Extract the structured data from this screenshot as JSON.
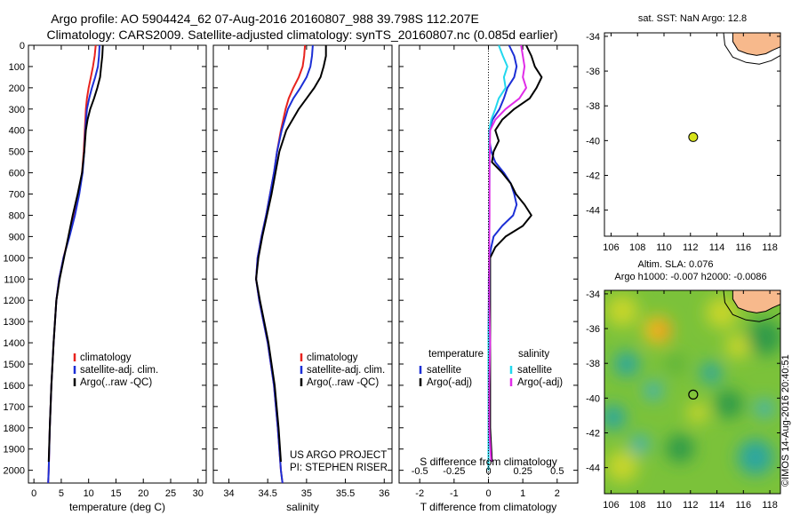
{
  "title": {
    "line1": "Argo profile: AO 5904424_62 07-Aug-2016 20160807_988 39.798S 112.207E",
    "line2": "Climatology: CARS2009. Satellite-adjusted climatology: synTS_20160807.nc (0.085d earlier)"
  },
  "copyright": "©IMOS 14-Aug-2016 20:40:51",
  "colors": {
    "climatology": "#e8231e",
    "satellite": "#1c2fd6",
    "argo": "#000000",
    "sat_s": "#22d8ee",
    "argo_s": "#e02ce8",
    "land": "#f7b98c"
  },
  "chart_data": [
    {
      "type": "line",
      "name": "temperature",
      "xlabel": "temperature (deg C)",
      "xlim": [
        -1,
        31.5
      ],
      "xticks": [
        0,
        5,
        10,
        15,
        20,
        25,
        30
      ],
      "ylim": [
        2060,
        0
      ],
      "yticks": [
        0,
        100,
        200,
        300,
        400,
        500,
        600,
        700,
        800,
        900,
        1000,
        1100,
        1200,
        1300,
        1400,
        1500,
        1600,
        1700,
        1800,
        1900,
        2000
      ],
      "legend": [
        "climatology",
        "satellite-adj. clim.",
        "Argo(..raw -QC)"
      ],
      "series": [
        {
          "key": "climatology",
          "depth": [
            0,
            50,
            100,
            150,
            200,
            250,
            300,
            400,
            500,
            600,
            700,
            800,
            900,
            1000,
            1100,
            1200,
            1400,
            1600,
            1800,
            2000,
            2060
          ],
          "values": [
            11.3,
            11.1,
            10.8,
            10.4,
            10.0,
            9.7,
            9.5,
            9.3,
            9.1,
            8.8,
            8.2,
            7.4,
            6.4,
            5.4,
            4.6,
            4.1,
            3.6,
            3.2,
            2.9,
            2.7,
            2.6
          ]
        },
        {
          "key": "satellite",
          "depth": [
            0,
            50,
            100,
            150,
            200,
            250,
            300,
            400,
            500,
            600,
            700,
            800,
            900,
            1000,
            1100,
            1200,
            1400,
            1600,
            1800,
            2000,
            2060
          ],
          "values": [
            12.0,
            11.9,
            11.7,
            11.2,
            10.6,
            10.1,
            9.7,
            9.4,
            9.2,
            8.9,
            8.3,
            7.5,
            6.5,
            5.4,
            4.6,
            4.1,
            3.6,
            3.2,
            2.9,
            2.7,
            2.6
          ]
        },
        {
          "key": "argo",
          "depth": [
            0,
            50,
            100,
            150,
            200,
            250,
            300,
            350,
            400,
            500,
            600,
            700,
            800,
            900,
            1000,
            1100,
            1200,
            1400,
            1600,
            1800,
            1960
          ],
          "values": [
            12.6,
            12.5,
            12.3,
            12.1,
            11.6,
            11.0,
            10.3,
            9.8,
            9.5,
            9.2,
            8.8,
            8.0,
            7.1,
            6.3,
            5.5,
            4.7,
            4.1,
            3.6,
            3.2,
            2.9,
            2.7
          ]
        }
      ]
    },
    {
      "type": "line",
      "name": "salinity",
      "xlabel": "salinity",
      "xlim": [
        33.8,
        36.1
      ],
      "xticks": [
        34,
        34.5,
        35,
        35.5,
        36
      ],
      "ylim": [
        2060,
        0
      ],
      "legend": [
        "climatology",
        "satellite-adj. clim.",
        "Argo(..raw -QC)"
      ],
      "annotation": [
        "US ARGO PROJECT",
        "PI: STEPHEN RISER"
      ],
      "series": [
        {
          "key": "climatology",
          "depth": [
            0,
            50,
            100,
            150,
            200,
            250,
            300,
            400,
            500,
            600,
            700,
            800,
            900,
            1000,
            1100,
            1200,
            1400,
            1600,
            1800,
            2000,
            2060
          ],
          "values": [
            34.98,
            34.97,
            34.95,
            34.9,
            34.83,
            34.77,
            34.73,
            34.67,
            34.62,
            34.58,
            34.53,
            34.48,
            34.42,
            34.37,
            34.35,
            34.39,
            34.5,
            34.58,
            34.63,
            34.67,
            34.69
          ]
        },
        {
          "key": "satellite",
          "depth": [
            0,
            50,
            100,
            150,
            200,
            250,
            300,
            400,
            500,
            600,
            700,
            800,
            900,
            1000,
            1100,
            1200,
            1400,
            1600,
            1800,
            2000,
            2060
          ],
          "values": [
            35.08,
            35.07,
            35.05,
            35.0,
            34.92,
            34.83,
            34.76,
            34.68,
            34.62,
            34.58,
            34.53,
            34.48,
            34.42,
            34.37,
            34.35,
            34.39,
            34.5,
            34.58,
            34.63,
            34.67,
            34.69
          ]
        },
        {
          "key": "argo",
          "depth": [
            0,
            50,
            100,
            150,
            200,
            250,
            300,
            350,
            400,
            500,
            600,
            700,
            800,
            900,
            1000,
            1100,
            1200,
            1400,
            1600,
            1800,
            1960
          ],
          "values": [
            35.25,
            35.25,
            35.22,
            35.18,
            35.1,
            35.0,
            34.9,
            34.82,
            34.74,
            34.65,
            34.6,
            34.55,
            34.49,
            34.43,
            34.38,
            34.35,
            34.4,
            34.51,
            34.59,
            34.64,
            34.67
          ]
        }
      ]
    },
    {
      "type": "line",
      "name": "difference",
      "xlabel": "T difference from climatology",
      "xlabel_top": "S difference from climatology",
      "xlim": [
        -2.6,
        2.6
      ],
      "xticks": [
        -2,
        -1,
        0,
        1,
        2
      ],
      "xticks_s": [
        -0.5,
        -0.25,
        0,
        0.25,
        0.5
      ],
      "xticks_s_labels": [
        "-0.5",
        "-0.25",
        "0",
        "0.25",
        "0.5"
      ],
      "ylim": [
        2060,
        0
      ],
      "legend_temperature": {
        "title": "temperature",
        "items": [
          "satellite",
          "Argo(-adj)"
        ]
      },
      "legend_salinity": {
        "title": "salinity",
        "items": [
          "satellite",
          "Argo(-adj)"
        ]
      },
      "series": [
        {
          "key": "satellite",
          "depth": [
            0,
            50,
            100,
            150,
            200,
            250,
            300,
            350,
            400,
            450,
            500,
            550,
            600,
            650,
            700,
            750,
            800,
            850,
            900,
            950,
            1000,
            1100,
            1200,
            1400,
            1600,
            1800,
            2000
          ],
          "values": [
            0.6,
            0.75,
            0.82,
            0.75,
            0.55,
            0.45,
            0.32,
            0.12,
            0.02,
            0.03,
            0.08,
            0.2,
            0.45,
            0.65,
            0.75,
            0.82,
            0.72,
            0.4,
            0.15,
            0.08,
            0.03,
            0.01,
            0.01,
            0.0,
            0.0,
            0.0,
            0.0
          ]
        },
        {
          "key": "argo",
          "depth": [
            0,
            50,
            100,
            150,
            200,
            250,
            300,
            350,
            400,
            450,
            500,
            550,
            600,
            650,
            700,
            750,
            800,
            850,
            900,
            950,
            1000,
            1100,
            1200,
            1400,
            1600,
            1800,
            1960
          ],
          "values": [
            1.1,
            1.25,
            1.35,
            1.55,
            1.4,
            1.2,
            0.75,
            0.4,
            0.2,
            0.3,
            0.15,
            0.1,
            0.4,
            0.65,
            0.8,
            1.05,
            1.25,
            1.0,
            0.5,
            0.2,
            0.05,
            0.05,
            0.05,
            0.05,
            0.05,
            0.05,
            0.1
          ]
        },
        {
          "key": "sat_s",
          "depth": [
            0,
            50,
            100,
            150,
            200,
            250,
            300,
            350,
            400,
            500,
            600,
            800,
            1000,
            1200,
            1400,
            1600,
            1800,
            2000
          ],
          "values": [
            0.3,
            0.42,
            0.55,
            0.45,
            0.5,
            0.3,
            0.2,
            0.08,
            0.02,
            0.02,
            0.03,
            0.02,
            0.02,
            0.02,
            0.0,
            0.0,
            0.0,
            0.0
          ]
        },
        {
          "key": "argo_s",
          "depth": [
            0,
            50,
            100,
            150,
            200,
            250,
            300,
            350,
            400,
            500,
            600,
            800,
            1000,
            1200,
            1400,
            1600,
            1800,
            1960
          ],
          "values": [
            0.95,
            1.0,
            1.05,
            1.0,
            1.1,
            0.9,
            0.5,
            0.2,
            0.05,
            0.04,
            0.03,
            0.03,
            0.02,
            0.02,
            0.05,
            0.02,
            0.02,
            0.08
          ]
        }
      ]
    },
    {
      "type": "scatter",
      "name": "sst-map",
      "title": "sat. SST: NaN Argo: 12.8",
      "xlim": [
        105.5,
        118.8
      ],
      "ylim": [
        -45.5,
        -33.8
      ],
      "xticks": [
        106,
        108,
        110,
        112,
        114,
        116,
        118
      ],
      "yticks": [
        -34,
        -36,
        -38,
        -40,
        -42,
        -44
      ],
      "point": {
        "lon": 112.207,
        "lat": -39.798
      }
    },
    {
      "type": "heatmap",
      "name": "sla-map",
      "title": "Altim. SLA: 0.076",
      "subtitle": "Argo h1000: -0.007 h2000: -0.0086",
      "xlim": [
        105.5,
        118.8
      ],
      "ylim": [
        -45.5,
        -33.8
      ],
      "xticks": [
        106,
        108,
        110,
        112,
        114,
        116,
        118
      ],
      "yticks": [
        -34,
        -36,
        -38,
        -40,
        -42,
        -44
      ],
      "point": {
        "lon": 112.207,
        "lat": -39.798
      }
    }
  ]
}
